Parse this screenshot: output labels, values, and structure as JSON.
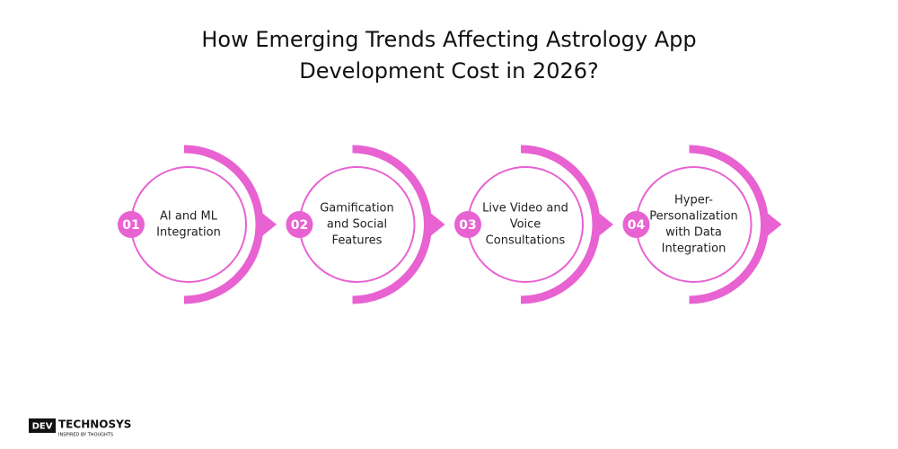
{
  "title": {
    "lines": [
      "How Emerging Trends Affecting Astrology App",
      "Development Cost in 2026?"
    ]
  },
  "steps": [
    {
      "number": "01",
      "lines": [
        "AI and ML",
        "Integration"
      ]
    },
    {
      "number": "02",
      "lines": [
        "Gamification",
        "and Social",
        "Features"
      ]
    },
    {
      "number": "03",
      "lines": [
        "Live Video and",
        "Voice",
        "Consultations"
      ]
    },
    {
      "number": "04",
      "lines": [
        "Hyper-",
        "Personalization",
        "with Data",
        "Integration"
      ]
    }
  ],
  "logo": {
    "brand_a": "DEV",
    "brand_b": "TECHNOSYS",
    "tagline": "INSPIRED BY THOUGHTS"
  }
}
